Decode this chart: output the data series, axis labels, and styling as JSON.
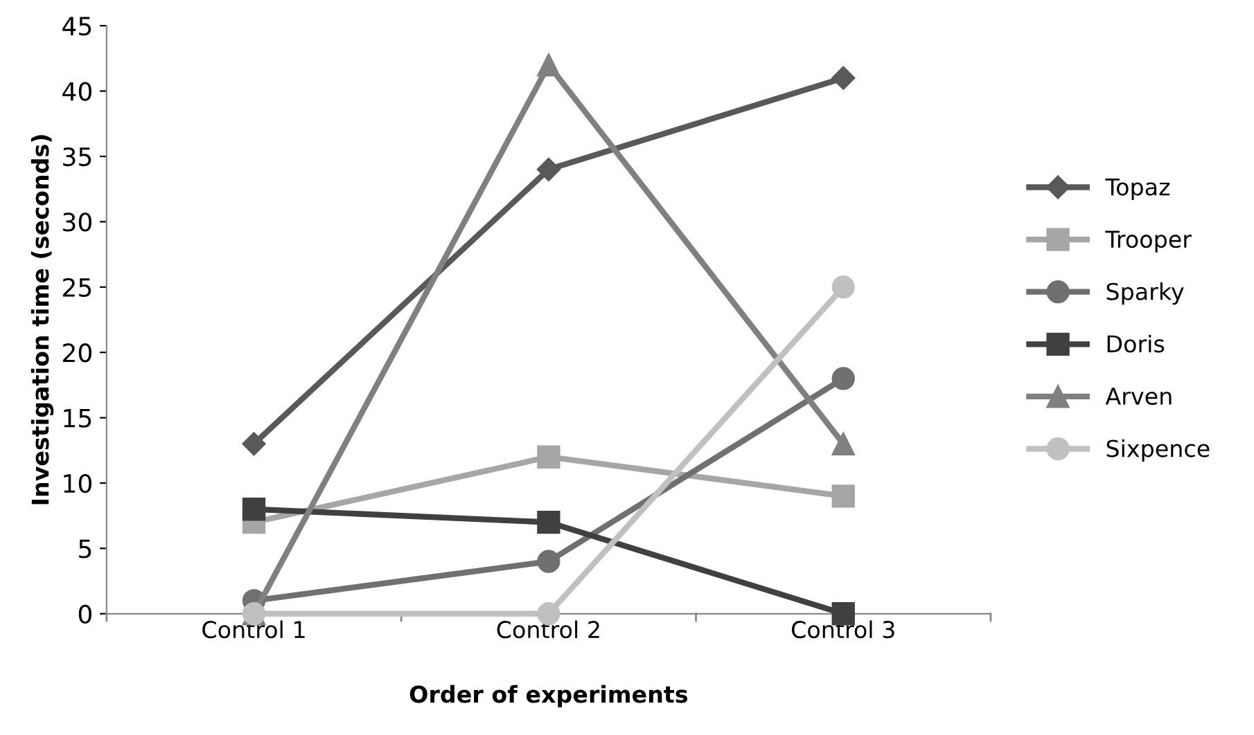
{
  "chart_data": {
    "type": "line",
    "xlabel": "Order of experiments",
    "ylabel": "Investigation time (seconds)",
    "categories": [
      "Control 1",
      "Control 2",
      "Control 3"
    ],
    "ylim": [
      0,
      45
    ],
    "yticks": [
      0,
      5,
      10,
      15,
      20,
      25,
      30,
      35,
      40,
      45
    ],
    "grid": false,
    "legend": "right",
    "series": [
      {
        "name": "Topaz",
        "color": "#595959",
        "values": [
          13,
          34,
          41
        ],
        "marker": "diamond"
      },
      {
        "name": "Trooper",
        "color": "#a6a6a6",
        "values": [
          7,
          12,
          9
        ],
        "marker": "square"
      },
      {
        "name": "Sparky",
        "color": "#707070",
        "values": [
          1,
          4,
          18
        ],
        "marker": "circle"
      },
      {
        "name": "Doris",
        "color": "#404040",
        "values": [
          8,
          7,
          0
        ],
        "marker": "square"
      },
      {
        "name": "Arven",
        "color": "#808080",
        "values": [
          0,
          42,
          13
        ],
        "marker": "triangle"
      },
      {
        "name": "Sixpence",
        "color": "#c0c0c0",
        "values": [
          0,
          0,
          25
        ],
        "marker": "circle"
      }
    ]
  }
}
